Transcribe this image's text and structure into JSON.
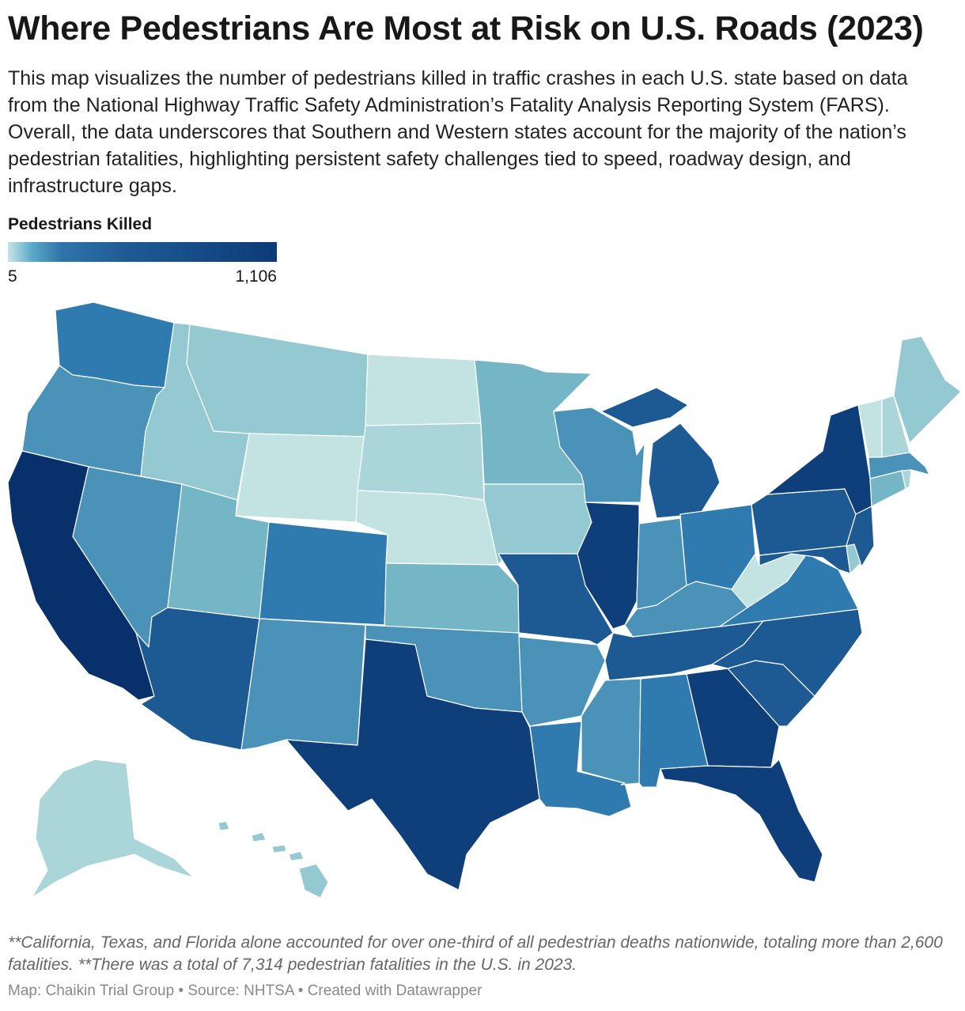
{
  "title": "Where Pedestrians Are Most at Risk on U.S. Roads (2023)",
  "description": "This map visualizes the number of pedestrians killed in traffic crashes in each U.S. state based on data from the National Highway Traffic Safety Administration’s Fatality Analysis Reporting System (FARS). Overall, the data underscores that Southern and Western states account for the majority of the nation’s pedestrian fatalities, highlighting persistent safety challenges tied to speed, roadway design, and infrastructure gaps.",
  "legend": {
    "title": "Pedestrians Killed",
    "min": "5",
    "max": "1,106"
  },
  "footnote": "**California, Texas, and Florida alone accounted for over one-third of all pedestrian deaths nationwide, totaling more than 2,600 fatalities. **There was a total of 7,314 pedestrian fatalities in the U.S. in 2023.",
  "credits": {
    "map": "Map: Chaikin Trial Group",
    "source": "Source: NHTSA",
    "created": "Created with Datawrapper",
    "separator": "•"
  },
  "colors": {
    "very_light": "#c2e3e2",
    "light": "#aad6d9",
    "light_medium": "#94c9d1",
    "medium_light": "#74b6c6",
    "medium": "#4a92b8",
    "medium_dark": "#2f7aae",
    "dark": "#1d5993",
    "very_dark": "#0e3f7a",
    "darkest": "#08306b"
  },
  "states": [
    {
      "name": "Washington",
      "shade": "medium_dark"
    },
    {
      "name": "Oregon",
      "shade": "medium"
    },
    {
      "name": "California",
      "shade": "darkest"
    },
    {
      "name": "Nevada",
      "shade": "medium"
    },
    {
      "name": "Idaho",
      "shade": "light_medium"
    },
    {
      "name": "Montana",
      "shade": "light_medium"
    },
    {
      "name": "Wyoming",
      "shade": "very_light"
    },
    {
      "name": "Utah",
      "shade": "medium_light"
    },
    {
      "name": "Arizona",
      "shade": "dark"
    },
    {
      "name": "Colorado",
      "shade": "medium_dark"
    },
    {
      "name": "New Mexico",
      "shade": "medium"
    },
    {
      "name": "North Dakota",
      "shade": "very_light"
    },
    {
      "name": "South Dakota",
      "shade": "light"
    },
    {
      "name": "Nebraska",
      "shade": "very_light"
    },
    {
      "name": "Kansas",
      "shade": "medium_light"
    },
    {
      "name": "Oklahoma",
      "shade": "medium"
    },
    {
      "name": "Texas",
      "shade": "very_dark"
    },
    {
      "name": "Minnesota",
      "shade": "medium_light"
    },
    {
      "name": "Iowa",
      "shade": "light_medium"
    },
    {
      "name": "Missouri",
      "shade": "dark"
    },
    {
      "name": "Arkansas",
      "shade": "medium"
    },
    {
      "name": "Louisiana",
      "shade": "medium_dark"
    },
    {
      "name": "Wisconsin",
      "shade": "medium"
    },
    {
      "name": "Illinois",
      "shade": "very_dark"
    },
    {
      "name": "Michigan",
      "shade": "dark"
    },
    {
      "name": "Indiana",
      "shade": "medium"
    },
    {
      "name": "Ohio",
      "shade": "medium_dark"
    },
    {
      "name": "Kentucky",
      "shade": "medium"
    },
    {
      "name": "Tennessee",
      "shade": "dark"
    },
    {
      "name": "Mississippi",
      "shade": "medium"
    },
    {
      "name": "Alabama",
      "shade": "medium_dark"
    },
    {
      "name": "Georgia",
      "shade": "very_dark"
    },
    {
      "name": "Florida",
      "shade": "very_dark"
    },
    {
      "name": "South Carolina",
      "shade": "dark"
    },
    {
      "name": "North Carolina",
      "shade": "dark"
    },
    {
      "name": "Virginia",
      "shade": "medium_dark"
    },
    {
      "name": "West Virginia",
      "shade": "very_light"
    },
    {
      "name": "Pennsylvania",
      "shade": "dark"
    },
    {
      "name": "New York",
      "shade": "very_dark"
    },
    {
      "name": "New Jersey",
      "shade": "dark"
    },
    {
      "name": "Maryland",
      "shade": "dark"
    },
    {
      "name": "Delaware",
      "shade": "light_medium"
    },
    {
      "name": "Connecticut",
      "shade": "medium_light"
    },
    {
      "name": "Rhode Island",
      "shade": "light"
    },
    {
      "name": "Massachusetts",
      "shade": "medium"
    },
    {
      "name": "Vermont",
      "shade": "very_light"
    },
    {
      "name": "New Hampshire",
      "shade": "light"
    },
    {
      "name": "Maine",
      "shade": "light_medium"
    },
    {
      "name": "Alaska",
      "shade": "light"
    },
    {
      "name": "Hawaii",
      "shade": "light_medium"
    }
  ]
}
